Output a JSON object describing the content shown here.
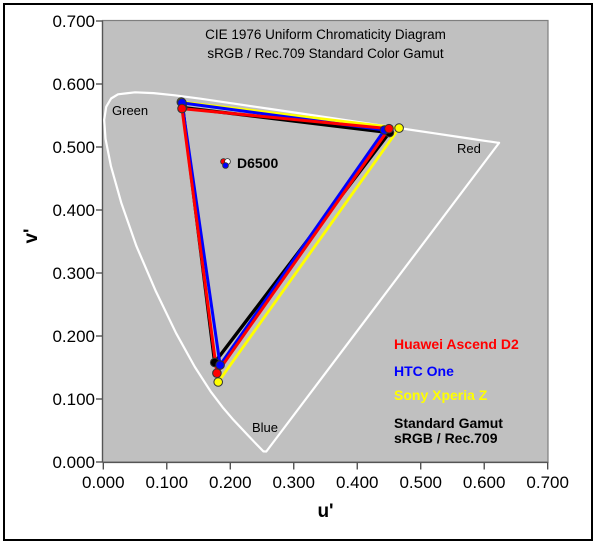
{
  "chart_data": {
    "type": "line",
    "title": "CIE 1976 Uniform Chromaticity Diagram",
    "subtitle": "sRGB / Rec.709 Standard Color Gamut",
    "xlabel": "u'",
    "ylabel": "v'",
    "xlim": [
      0.0,
      0.7
    ],
    "ylim": [
      0.0,
      0.7
    ],
    "grid": false,
    "plot_background": "#c0c0c0",
    "x_tick_values": [
      0.0,
      0.1,
      0.2,
      0.3,
      0.4,
      0.5,
      0.6,
      0.7
    ],
    "x_tick_labels": [
      "0.000",
      "0.100",
      "0.200",
      "0.300",
      "0.400",
      "0.500",
      "0.600",
      "0.700"
    ],
    "y_tick_values": [
      0.0,
      0.1,
      0.2,
      0.3,
      0.4,
      0.5,
      0.6,
      0.7
    ],
    "y_tick_labels": [
      "0.000",
      "0.100",
      "0.200",
      "0.300",
      "0.400",
      "0.500",
      "0.600",
      "0.700"
    ],
    "spectral_locus": {
      "name": "CIE 1976 spectral locus boundary",
      "color": "#ffffff",
      "stroke_width": 2.2,
      "closed": true,
      "points_uv": [
        [
          0.2568,
          0.0166
        ],
        [
          0.2522,
          0.0169
        ],
        [
          0.2347,
          0.035
        ],
        [
          0.2266,
          0.0437
        ],
        [
          0.2161,
          0.0549
        ],
        [
          0.2033,
          0.0688
        ],
        [
          0.1877,
          0.0871
        ],
        [
          0.169,
          0.112
        ],
        [
          0.1441,
          0.151
        ],
        [
          0.1147,
          0.2044
        ],
        [
          0.0828,
          0.2708
        ],
        [
          0.0521,
          0.3427
        ],
        [
          0.0282,
          0.4117
        ],
        [
          0.0119,
          0.4698
        ],
        [
          0.0035,
          0.5131
        ],
        [
          0.0014,
          0.5432
        ],
        [
          0.0046,
          0.5638
        ],
        [
          0.0123,
          0.577
        ],
        [
          0.0231,
          0.5836
        ],
        [
          0.0501,
          0.5868
        ],
        [
          0.0792,
          0.5856
        ],
        [
          0.1127,
          0.5821
        ],
        [
          0.1531,
          0.5766
        ],
        [
          0.2026,
          0.5694
        ],
        [
          0.2623,
          0.5604
        ],
        [
          0.3315,
          0.5501
        ],
        [
          0.4035,
          0.5393
        ],
        [
          0.4691,
          0.5296
        ],
        [
          0.5203,
          0.5219
        ],
        [
          0.5565,
          0.5165
        ],
        [
          0.583,
          0.5125
        ],
        [
          0.6005,
          0.5099
        ],
        [
          0.6109,
          0.5084
        ],
        [
          0.6199,
          0.507
        ],
        [
          0.6234,
          0.5065
        ]
      ]
    },
    "series": [
      {
        "id": "standard",
        "name": "Standard Gamut sRGB / Rec.709",
        "color": "#000000",
        "stroke_width": 3.4,
        "vertices_uv": {
          "green": [
            0.125,
            0.5625
          ],
          "red": [
            0.4507,
            0.5229
          ],
          "blue": [
            0.1754,
            0.1579
          ]
        },
        "white_point_uv": [
          0.1956,
          0.477
        ],
        "white_point_color": "#ffffff"
      },
      {
        "id": "sony",
        "name": "Sony Xperia Z",
        "color": "#ffff00",
        "stroke_width": 2.8,
        "vertices_uv": {
          "green": [
            0.1228,
            0.5715
          ],
          "red": [
            0.466,
            0.53
          ],
          "blue": [
            0.181,
            0.127
          ]
        },
        "white_point_uv": [
          0.1925,
          0.474
        ],
        "white_point_color": "#ffff00"
      },
      {
        "id": "htc",
        "name": "HTC One",
        "color": "#0000ff",
        "stroke_width": 3.0,
        "vertices_uv": {
          "green": [
            0.124,
            0.57
          ],
          "red": [
            0.443,
            0.527
          ],
          "blue": [
            0.184,
            0.154
          ]
        },
        "white_point_uv": [
          0.1925,
          0.4706
        ],
        "white_point_color": "#0000ff"
      },
      {
        "id": "huawei",
        "name": "Huawei Ascend D2",
        "color": "#ff0000",
        "stroke_width": 3.0,
        "vertices_uv": {
          "green": [
            0.124,
            0.561
          ],
          "red": [
            0.45,
            0.529
          ],
          "blue": [
            0.179,
            0.141
          ]
        },
        "white_point_uv": [
          0.1893,
          0.477
        ],
        "white_point_color": "#ff0000"
      }
    ],
    "white_point_draw_order": [
      "sony",
      "huawei",
      "standard",
      "htc"
    ],
    "white_point_label": "D6500",
    "point_labels": {
      "green": "Green",
      "red": "Red",
      "blue": "Blue"
    },
    "legend_position": "inside-right"
  },
  "legend": {
    "items": [
      {
        "label": "Huawei Ascend D2",
        "color": "#ff0000"
      },
      {
        "label": "HTC One",
        "color": "#0000ff"
      },
      {
        "label": "Sony Xperia Z",
        "color": "#ffff00"
      },
      {
        "label": "Standard Gamut",
        "color": "#000000"
      },
      {
        "label": "sRGB / Rec.709",
        "color": "#000000"
      }
    ]
  }
}
